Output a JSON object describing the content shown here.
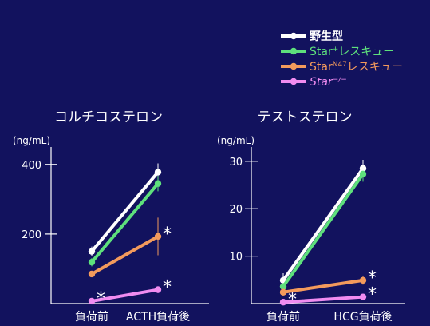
{
  "legend": {
    "placement": "top-right",
    "items": [
      {
        "label": "野生型",
        "sup": "",
        "suffix": "",
        "color": "#ffffff",
        "italic": false
      },
      {
        "label": "Star",
        "sup": "+",
        "suffix": "レスキュー",
        "color": "#5ee07c",
        "italic": false
      },
      {
        "label": "Star",
        "sup": "N47",
        "suffix": "レスキュー",
        "color": "#f39a5c",
        "italic": false
      },
      {
        "label": "Star",
        "sup": "−/−",
        "suffix": "",
        "color": "#f08cf0",
        "italic": true
      }
    ]
  },
  "chart_data": [
    {
      "type": "line",
      "title": "コルチコステロン",
      "ylabel": "(ng/mL)",
      "categories": [
        "負荷前",
        "ACTH負荷後"
      ],
      "ylim": [
        0,
        450
      ],
      "yticks": [
        200,
        400
      ],
      "series": [
        {
          "name": "野生型",
          "color": "#ffffff",
          "values": [
            150,
            378
          ],
          "err": [
            14,
            25
          ]
        },
        {
          "name": "Star+レスキュー",
          "color": "#5ee07c",
          "values": [
            119,
            345
          ],
          "err": [
            12,
            22
          ]
        },
        {
          "name": "StarN47レスキュー",
          "color": "#f39a5c",
          "values": [
            85,
            193
          ],
          "err": [
            8,
            54
          ]
        },
        {
          "name": "Star−/−",
          "color": "#f08cf0",
          "values": [
            7,
            40
          ],
          "err": [
            5,
            10
          ]
        }
      ],
      "asterisks": [
        {
          "series": 2,
          "point": 1,
          "text": "*"
        },
        {
          "series": 3,
          "point": 0,
          "text": "*"
        },
        {
          "series": 3,
          "point": 1,
          "text": "*"
        }
      ]
    },
    {
      "type": "line",
      "title": "テストステロン",
      "ylabel": "(ng/mL)",
      "categories": [
        "負荷前",
        "HCG負荷後"
      ],
      "ylim": [
        0,
        33
      ],
      "yticks": [
        10,
        20,
        30
      ],
      "series": [
        {
          "name": "野生型",
          "color": "#ffffff",
          "values": [
            4.9,
            28.5
          ],
          "err": [
            1.5,
            1.8
          ]
        },
        {
          "name": "Star+レスキュー",
          "color": "#5ee07c",
          "values": [
            3.6,
            27.3
          ],
          "err": [
            1.2,
            1.6
          ]
        },
        {
          "name": "StarN47レスキュー",
          "color": "#f39a5c",
          "values": [
            2.4,
            4.9
          ],
          "err": [
            0.5,
            0.9
          ]
        },
        {
          "name": "Star−/−",
          "color": "#f08cf0",
          "values": [
            0.3,
            1.4
          ],
          "err": [
            0.2,
            0.3
          ]
        }
      ],
      "asterisks": [
        {
          "series": 3,
          "point": 0,
          "text": "*"
        },
        {
          "series": 2,
          "point": 1,
          "text": "*"
        },
        {
          "series": 3,
          "point": 1,
          "text": "*"
        }
      ]
    }
  ]
}
